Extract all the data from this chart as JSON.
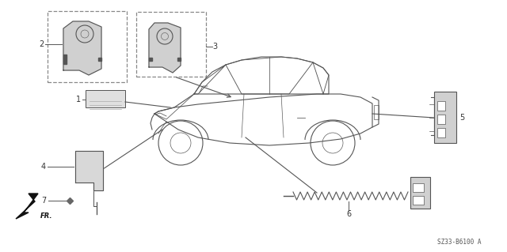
{
  "background_color": "#ffffff",
  "diagram_code": "SZ33-B6100 A",
  "line_color": "#555555",
  "font_color": "#333333",
  "part_labels": [
    "1",
    "2",
    "3",
    "4",
    "5",
    "6",
    "7"
  ],
  "fr_text": "FR."
}
